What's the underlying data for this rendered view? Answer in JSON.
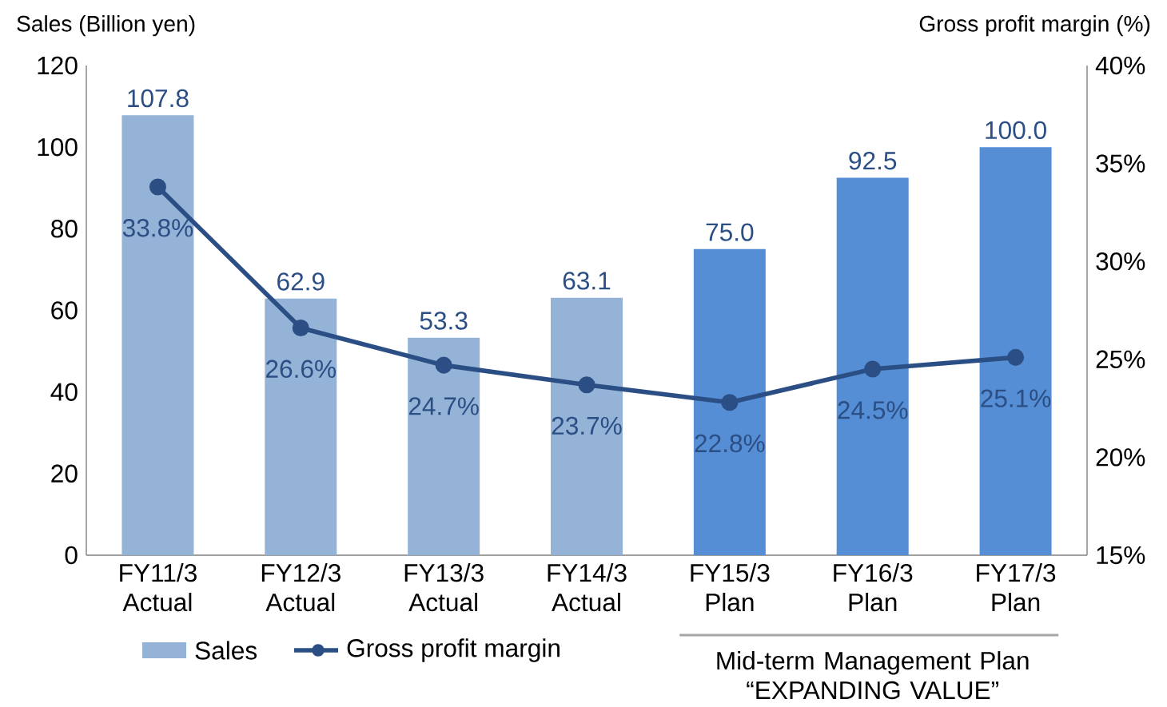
{
  "chart_data": {
    "type": "bar",
    "ylabel": "Sales (Billion yen)",
    "y2label": "Gross profit margin (%)",
    "categories": [
      "FY11/3 Actual",
      "FY12/3 Actual",
      "FY13/3 Actual",
      "FY14/3 Actual",
      "FY15/3 Plan",
      "FY16/3 Plan",
      "FY17/3 Plan"
    ],
    "series": [
      {
        "name": "Sales",
        "colors": [
          "#95b3d7",
          "#95b3d7",
          "#95b3d7",
          "#95b3d7",
          "#558ed5",
          "#558ed5",
          "#558ed5"
        ],
        "color": "#95b3d7",
        "values": [
          107.8,
          62.9,
          53.3,
          63.1,
          75.0,
          92.5,
          100.0
        ],
        "value_labels": [
          "107.8",
          "62.9",
          "53.3",
          "63.1",
          "75.0",
          "92.5",
          "100.0"
        ]
      },
      {
        "name": "Gross profit margin",
        "type": "line",
        "axis": "y2",
        "color": "#2b4f85",
        "marker": "circle",
        "values": [
          33.8,
          26.6,
          24.7,
          23.7,
          22.8,
          24.5,
          25.1
        ],
        "value_labels": [
          "33.8%",
          "26.6%",
          "24.7%",
          "23.7%",
          "22.8%",
          "24.5%",
          "25.1%"
        ]
      }
    ],
    "ylim": [
      0,
      120
    ],
    "yticks": [
      0,
      20,
      40,
      60,
      80,
      100,
      120
    ],
    "y2lim": [
      15,
      40
    ],
    "y2ticks": [
      {
        "value": 15,
        "label": "15%"
      },
      {
        "value": 20,
        "label": "20%"
      },
      {
        "value": 25,
        "label": "25%"
      },
      {
        "value": 30,
        "label": "30%"
      },
      {
        "value": 35,
        "label": "35%"
      },
      {
        "value": 40,
        "label": "40%"
      }
    ],
    "annotations": [
      "Mid-term Management Plan “EXPANDING VALUE”"
    ],
    "legend": "bottom",
    "grid": false
  }
}
